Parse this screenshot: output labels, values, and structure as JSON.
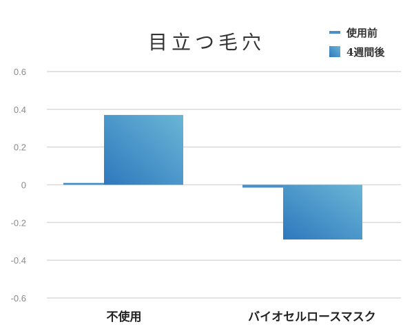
{
  "chart_data": {
    "type": "bar",
    "title": "目立つ毛穴",
    "categories": [
      "不使用",
      "バイオセルロースマスク"
    ],
    "series": [
      {
        "name": "使用前",
        "values": [
          0.01,
          -0.015
        ],
        "color": "#4a90c8"
      },
      {
        "name": "4週間後",
        "values": [
          0.37,
          -0.29
        ],
        "color": "#3d8fc6"
      }
    ],
    "ylim": [
      -0.6,
      0.6
    ],
    "yticks": [
      "0.6",
      "0.4",
      "0.2",
      "0",
      "-0.2",
      "-0.4",
      "-0.6"
    ],
    "ytick_values": [
      0.6,
      0.4,
      0.2,
      0,
      -0.2,
      -0.4,
      -0.6
    ],
    "xlabel": "",
    "ylabel": "",
    "grid": true,
    "legend": "top-right",
    "colors": {
      "grid": "#d9d9d9",
      "bar_gradient_start": "#2e78bd",
      "bar_gradient_end": "#6ab6d6"
    }
  }
}
